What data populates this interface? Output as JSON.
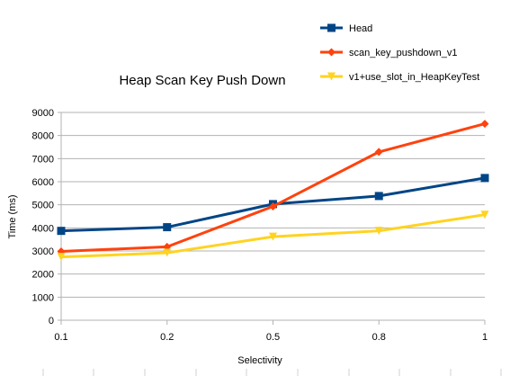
{
  "chart_data": {
    "type": "line",
    "title": "Heap Scan Key Push Down",
    "xlabel": "Selectivity",
    "ylabel": "Time (ms)",
    "categories": [
      "0.1",
      "0.2",
      "0.5",
      "0.8",
      "1"
    ],
    "ylim": [
      0,
      9000
    ],
    "yticks": [
      0,
      1000,
      2000,
      3000,
      4000,
      5000,
      6000,
      7000,
      8000,
      9000
    ],
    "grid": "horizontal",
    "legend_position": "top-right",
    "series": [
      {
        "name": "Head",
        "color": "#004586",
        "marker": "square",
        "values": [
          3870,
          4030,
          5030,
          5380,
          6160
        ]
      },
      {
        "name": "scan_key_pushdown_v1",
        "color": "#ff420e",
        "marker": "diamond",
        "values": [
          2980,
          3180,
          4930,
          7290,
          8510
        ]
      },
      {
        "name": "v1+use_slot_in_HeapKeyTest",
        "color": "#ffd320",
        "marker": "triangle-down",
        "values": [
          2740,
          2920,
          3620,
          3870,
          4570
        ]
      }
    ]
  }
}
